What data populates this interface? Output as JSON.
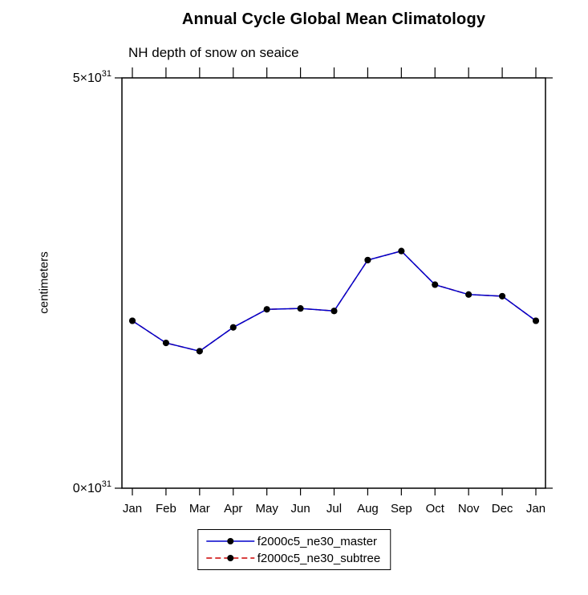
{
  "title": "Annual Cycle Global Mean Climatology",
  "subtitle": "NH depth of snow on seaice",
  "ylabel": "centimeters",
  "chart_data": {
    "type": "line",
    "title": "Annual Cycle Global Mean Climatology",
    "subtitle": "NH depth of snow on seaice",
    "xlabel": "",
    "ylabel": "centimeters",
    "unit_scale": "values are in units of 10^31 centimeters",
    "categories": [
      "Jan",
      "Feb",
      "Mar",
      "Apr",
      "May",
      "Jun",
      "Jul",
      "Aug",
      "Sep",
      "Oct",
      "Nov",
      "Dec",
      "Jan"
    ],
    "series": [
      {
        "name": "f2000c5_ne30_master",
        "color": "#0000cc",
        "line_style": "solid",
        "marker": "filled-circle",
        "marker_color": "#000000",
        "values": [
          2.04,
          1.77,
          1.67,
          1.96,
          2.18,
          2.19,
          2.16,
          2.78,
          2.89,
          2.48,
          2.36,
          2.34,
          2.04
        ]
      },
      {
        "name": "f2000c5_ne30_subtree",
        "color": "#cc0000",
        "line_style": "dashed",
        "marker": "filled-circle",
        "marker_color": "#000000",
        "values": [
          2.04,
          1.77,
          1.67,
          1.96,
          2.18,
          2.19,
          2.16,
          2.78,
          2.89,
          2.48,
          2.36,
          2.34,
          2.04
        ]
      }
    ],
    "ylim": [
      0,
      5
    ],
    "yticks": [
      {
        "value": 0,
        "base": "0×10",
        "exp": "31"
      },
      {
        "value": 5,
        "base": "5×10",
        "exp": "31"
      }
    ],
    "grid": false,
    "legend_position": "bottom-center",
    "note": "red dashed subtree series overlaps blue master series exactly"
  }
}
